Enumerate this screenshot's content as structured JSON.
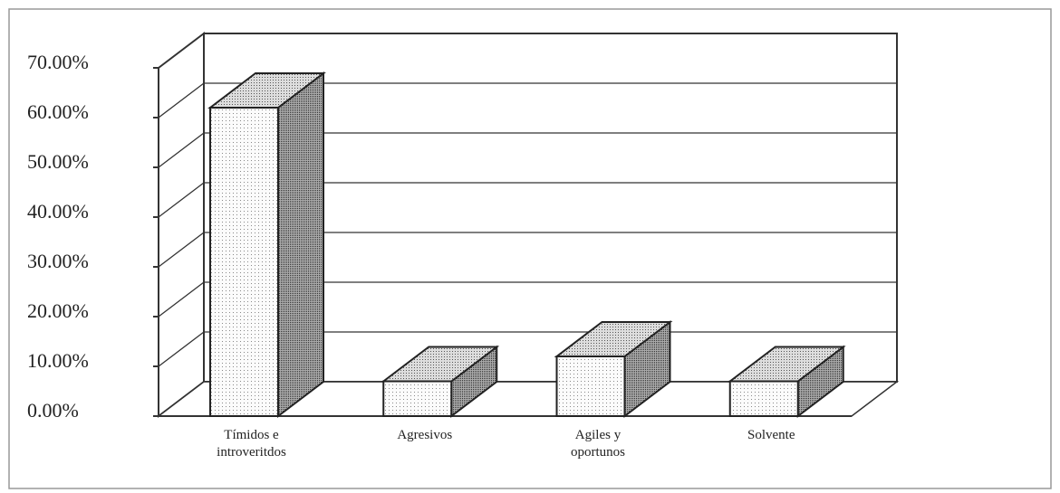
{
  "chart_data": {
    "type": "bar3d",
    "categories": [
      "Tímidos e introveritdos",
      "Agresivos",
      "Agiles y oportunos",
      "Solvente"
    ],
    "values": [
      62,
      7,
      12,
      7
    ],
    "ylim": [
      0,
      70
    ],
    "yticks": [
      {
        "value": 0,
        "label": "0.00%"
      },
      {
        "value": 10,
        "label": "10.00%"
      },
      {
        "value": 20,
        "label": "20.00%"
      },
      {
        "value": 30,
        "label": "30.00%"
      },
      {
        "value": 40,
        "label": "40.00%"
      },
      {
        "value": 50,
        "label": "50.00%"
      },
      {
        "value": 60,
        "label": "60.00%"
      },
      {
        "value": 70,
        "label": "70.00%"
      }
    ],
    "grid": true
  }
}
